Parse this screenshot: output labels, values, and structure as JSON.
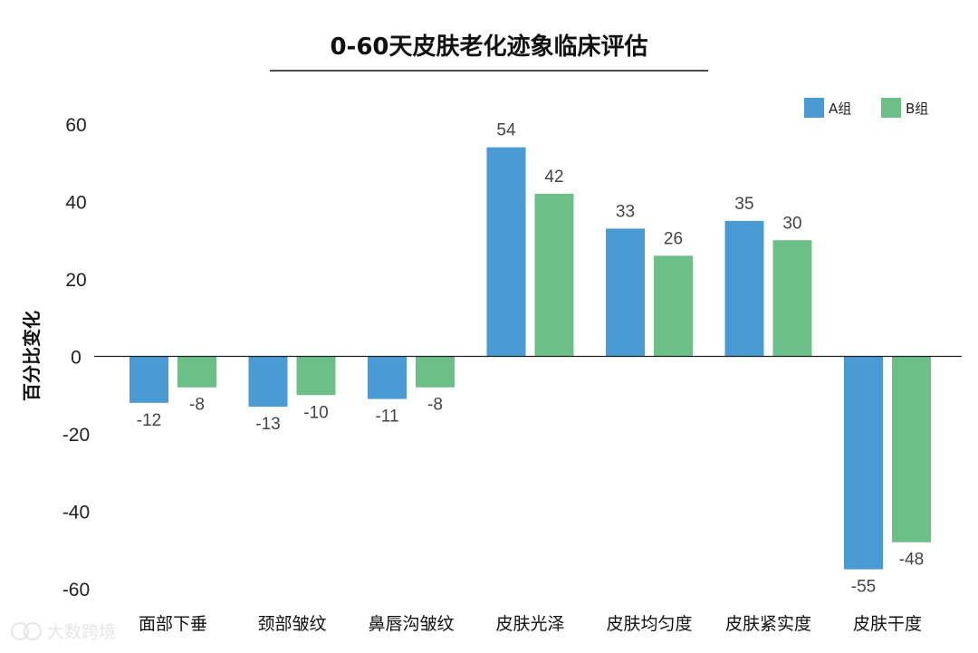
{
  "chart_data": {
    "type": "bar",
    "title": "0-60天皮肤老化迹象临床评估",
    "ylabel": "百分比变化",
    "xlabel": "",
    "ylim": [
      -60,
      60
    ],
    "yticks": [
      60,
      40,
      20,
      0,
      -20,
      -40,
      -60
    ],
    "categories": [
      "面部下垂",
      "颈部皱纹",
      "鼻唇沟皱纹",
      "皮肤光泽",
      "皮肤均匀度",
      "皮肤紧实度",
      "皮肤干度"
    ],
    "series": [
      {
        "name": "A组",
        "color": "#4a9ad4",
        "values": [
          -12,
          -13,
          -11,
          54,
          33,
          35,
          -55
        ]
      },
      {
        "name": "B组",
        "color": "#6bbf87",
        "values": [
          -8,
          -10,
          -8,
          42,
          26,
          30,
          -48
        ]
      }
    ],
    "legend_position": "top-right",
    "grid": false
  },
  "watermark": {
    "text": "大数跨境",
    "icon": "brand-logo-icon"
  }
}
